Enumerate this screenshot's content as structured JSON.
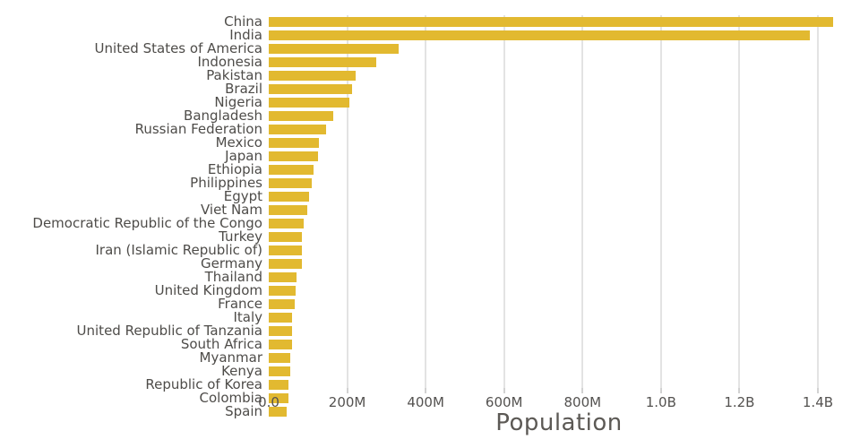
{
  "chart_data": {
    "type": "bar",
    "orientation": "horizontal",
    "title": "",
    "xlabel": "Population",
    "ylabel": "",
    "legend": "none",
    "grid": "vertical",
    "xlim_m": [
      0,
      1480
    ],
    "x_tick_labels": [
      "0.0",
      "200M",
      "400M",
      "600M",
      "800M",
      "1.0B",
      "1.2B",
      "1.4B"
    ],
    "x_tick_values_m": [
      0,
      200,
      400,
      600,
      800,
      1000,
      1200,
      1400
    ],
    "categories": [
      "China",
      "India",
      "United States of America",
      "Indonesia",
      "Pakistan",
      "Brazil",
      "Nigeria",
      "Bangladesh",
      "Russian Federation",
      "Mexico",
      "Japan",
      "Ethiopia",
      "Philippines",
      "Egypt",
      "Viet Nam",
      "Democratic Republic of the Congo",
      "Turkey",
      "Iran (Islamic Republic of)",
      "Germany",
      "Thailand",
      "United Kingdom",
      "France",
      "Italy",
      "United Republic of Tanzania",
      "South Africa",
      "Myanmar",
      "Kenya",
      "Republic of Korea",
      "Colombia",
      "Spain"
    ],
    "values_millions": [
      1439.3,
      1380.0,
      331.0,
      273.5,
      220.9,
      212.6,
      206.1,
      164.7,
      145.9,
      128.9,
      126.5,
      115.0,
      109.6,
      102.3,
      97.3,
      89.6,
      84.3,
      84.0,
      83.8,
      69.8,
      67.9,
      65.3,
      60.5,
      59.7,
      59.3,
      54.4,
      53.8,
      51.3,
      50.9,
      46.8
    ],
    "bar_color": "#E2B930"
  },
  "colors": {
    "bar": "#E2B930",
    "gridline": "#E3E3E3",
    "tick": "#D2D2D2",
    "axis_text": "#545250",
    "label_text": "#4E4C49",
    "title_text": "#5C5955",
    "background": "#FFFFFF"
  }
}
